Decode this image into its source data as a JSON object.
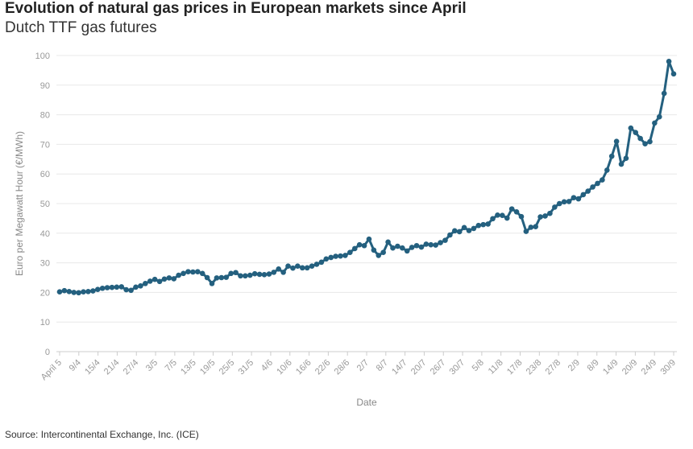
{
  "header": {
    "title": "Evolution of natural gas prices in European markets since April",
    "subtitle": "Dutch TTF gas futures"
  },
  "footer": {
    "source": "Source: Intercontinental Exchange, Inc. (ICE)"
  },
  "colors": {
    "line": "#24607f",
    "grid": "#e8e8e8",
    "axis": "#cccccc"
  },
  "chart_data": {
    "type": "line",
    "title": "Evolution of natural gas prices in European markets since April",
    "subtitle": "Dutch TTF gas futures",
    "xlabel": "Date",
    "ylabel": "Euro per Megawatt Hour (€/MWh)",
    "ylim": [
      0,
      100
    ],
    "yticks": [
      0,
      10,
      20,
      30,
      40,
      50,
      60,
      70,
      80,
      90,
      100
    ],
    "grid": true,
    "legend": "none",
    "x_tick_labels": [
      "April 5",
      "9/4",
      "15/4",
      "21/4",
      "27/4",
      "3/5",
      "7/5",
      "13/5",
      "19/5",
      "25/5",
      "31/5",
      "4/6",
      "10/6",
      "16/6",
      "22/6",
      "28/6",
      "2/7",
      "8/7",
      "14/7",
      "20/7",
      "26/7",
      "30/7",
      "5/8",
      "11/8",
      "17/8",
      "23/8",
      "27/8",
      "2/9",
      "8/9",
      "14/9",
      "20/9",
      "24/9",
      "30/9"
    ],
    "series": [
      {
        "values": [
          20.2,
          20.6,
          20.3,
          20.0,
          19.9,
          20.2,
          20.3,
          20.5,
          21.0,
          21.4,
          21.6,
          21.7,
          21.8,
          21.9,
          20.9,
          20.7,
          21.8,
          22.2,
          23.0,
          23.8,
          24.4,
          23.7,
          24.5,
          24.9,
          24.6,
          25.8,
          26.4,
          27.0,
          26.9,
          27.0,
          26.4,
          25.0,
          23.0,
          24.9,
          25.0,
          25.1,
          26.4,
          26.7,
          25.6,
          25.6,
          25.8,
          26.3,
          26.1,
          26.0,
          26.2,
          26.8,
          27.9,
          26.8,
          28.9,
          28.2,
          28.9,
          28.3,
          28.3,
          28.9,
          29.5,
          30.2,
          31.3,
          31.8,
          32.2,
          32.3,
          32.5,
          33.5,
          34.8,
          36.1,
          35.8,
          38.0,
          34.3,
          32.5,
          33.5,
          37.0,
          35.0,
          35.6,
          35.0,
          34.0,
          35.2,
          35.8,
          35.3,
          36.3,
          36.1,
          36.0,
          36.8,
          37.6,
          39.4,
          40.8,
          40.5,
          41.9,
          40.9,
          41.6,
          42.6,
          42.9,
          43.1,
          44.9,
          46.1,
          46.0,
          45.1,
          48.2,
          47.2,
          45.6,
          40.6,
          42.0,
          42.2,
          45.5,
          45.8,
          46.7,
          48.8,
          50.0,
          50.6,
          50.7,
          52.0,
          51.6,
          53.0,
          54.2,
          55.6,
          56.8,
          58.0,
          61.3,
          66.0,
          71.0,
          63.3,
          65.3,
          75.5,
          74.0,
          72.0,
          70.2,
          70.9,
          77.2,
          79.3,
          87.2,
          98.0,
          93.8
        ]
      }
    ]
  }
}
